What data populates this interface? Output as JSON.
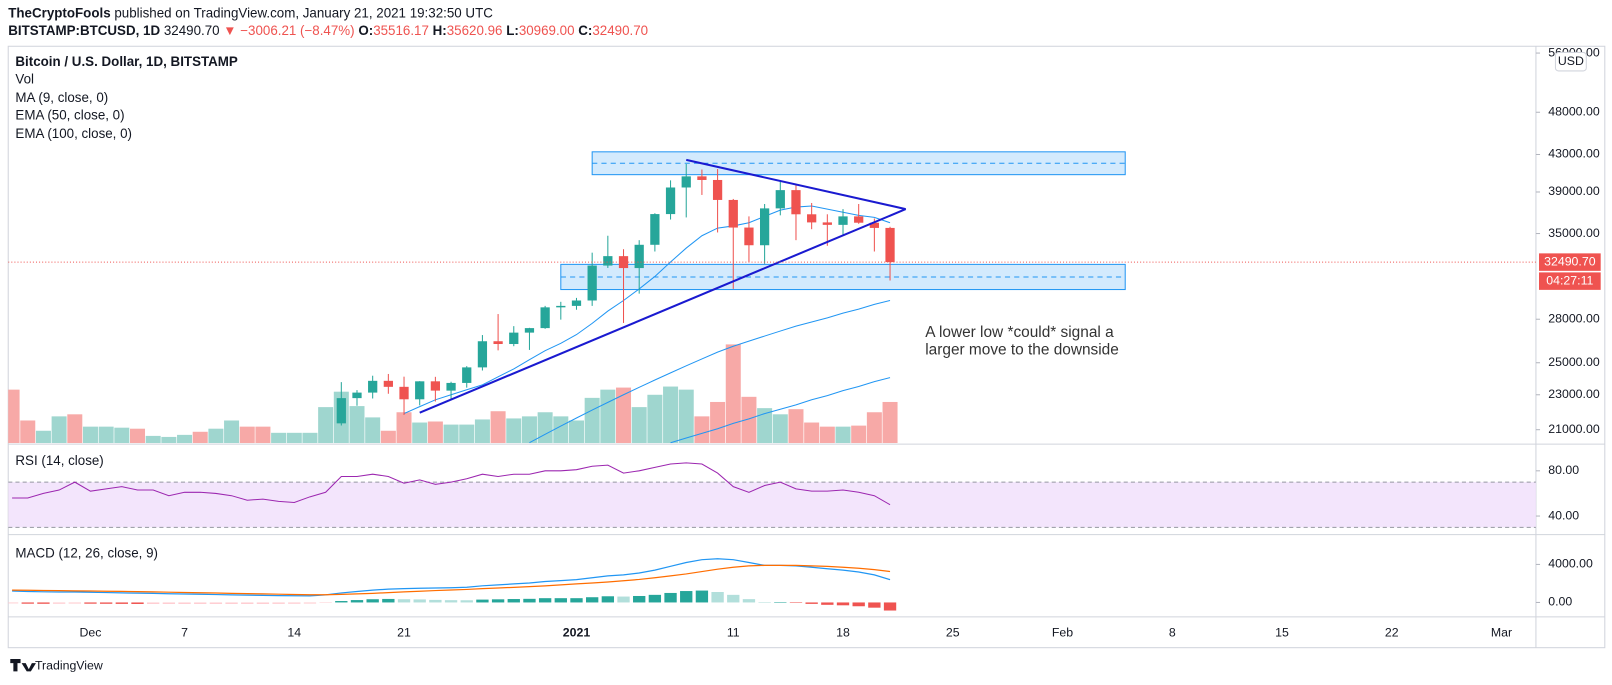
{
  "header": {
    "author": "TheCryptoFools",
    "published": "published on TradingView.com, January 21, 2021 19:32:50 UTC",
    "symbol": "BITSTAMP:BTCUSD, 1D",
    "last": "32490.70",
    "change": "▼ −3006.21 (−8.47%)",
    "ohlc": [
      {
        "label": "O:",
        "value": "35516.17"
      },
      {
        "label": "H:",
        "value": "35620.96"
      },
      {
        "label": "L:",
        "value": "30969.00"
      },
      {
        "label": "C:",
        "value": "32490.70"
      }
    ]
  },
  "footer": {
    "brand": "TradingView"
  },
  "chart_data": {
    "type": "candlestick",
    "title": "Bitcoin / U.S. Dollar, 1D, BITSTAMP",
    "y_unit": "USD",
    "x": [
      "2020-11-26",
      "2020-11-27",
      "2020-11-28",
      "2020-11-29",
      "2020-11-30",
      "2020-12-01",
      "2020-12-02",
      "2020-12-03",
      "2020-12-04",
      "2020-12-05",
      "2020-12-06",
      "2020-12-07",
      "2020-12-08",
      "2020-12-09",
      "2020-12-10",
      "2020-12-11",
      "2020-12-12",
      "2020-12-13",
      "2020-12-14",
      "2020-12-15",
      "2020-12-16",
      "2020-12-17",
      "2020-12-18",
      "2020-12-19",
      "2020-12-20",
      "2020-12-21",
      "2020-12-22",
      "2020-12-23",
      "2020-12-24",
      "2020-12-25",
      "2020-12-26",
      "2020-12-27",
      "2020-12-28",
      "2020-12-29",
      "2020-12-30",
      "2020-12-31",
      "2021-01-01",
      "2021-01-02",
      "2021-01-03",
      "2021-01-04",
      "2021-01-05",
      "2021-01-06",
      "2021-01-07",
      "2021-01-08",
      "2021-01-09",
      "2021-01-10",
      "2021-01-11",
      "2021-01-12",
      "2021-01-13",
      "2021-01-14",
      "2021-01-15",
      "2021-01-16",
      "2021-01-17",
      "2021-01-18",
      "2021-01-19",
      "2021-01-20",
      "2021-01-21"
    ],
    "xlim": [
      "2020-11-25",
      "2021-03-03"
    ],
    "xticks": [
      {
        "value": "2020-12-01",
        "label": "Dec"
      },
      {
        "value": "2020-12-07",
        "label": "7"
      },
      {
        "value": "2020-12-14",
        "label": "14"
      },
      {
        "value": "2020-12-21",
        "label": "21"
      },
      {
        "value": "2021-01-01",
        "label": "2021"
      },
      {
        "value": "2021-01-11",
        "label": "11"
      },
      {
        "value": "2021-01-18",
        "label": "18"
      },
      {
        "value": "2021-01-25",
        "label": "25"
      },
      {
        "value": "2021-02-01",
        "label": "Feb"
      },
      {
        "value": "2021-02-08",
        "label": "8"
      },
      {
        "value": "2021-02-15",
        "label": "15"
      },
      {
        "value": "2021-02-22",
        "label": "22"
      },
      {
        "value": "2021-03-01",
        "label": "Mar"
      }
    ],
    "ylim": [
      20280,
      57000
    ],
    "log_scale": true,
    "grid": false,
    "yticks": [
      {
        "value": 21000,
        "label": "21000.00"
      },
      {
        "value": 23000,
        "label": "23000.00"
      },
      {
        "value": 25000,
        "label": "25000.00"
      },
      {
        "value": 28000,
        "label": "28000.00"
      },
      {
        "value": 35000,
        "label": "35000.00"
      },
      {
        "value": 39000,
        "label": "39000.00"
      },
      {
        "value": 43000,
        "label": "43000.00"
      },
      {
        "value": 48000,
        "label": "48000.00"
      },
      {
        "value": 56000,
        "label": "56000.00"
      }
    ],
    "up_color": "#26a69a",
    "down_color": "#ef5350",
    "open": [
      null,
      null,
      null,
      null,
      null,
      null,
      null,
      null,
      null,
      null,
      null,
      null,
      null,
      null,
      null,
      null,
      null,
      null,
      null,
      null,
      null,
      21350,
      22800,
      23130,
      23850,
      23480,
      22730,
      23820,
      23250,
      23720,
      24700,
      26440,
      26250,
      27040,
      27360,
      28880,
      28990,
      29400,
      32200,
      33000,
      31990,
      33990,
      36820,
      39460,
      40620,
      40240,
      38200,
      35550,
      33950,
      37370,
      39190,
      36800,
      36030,
      35800,
      36600,
      36000,
      35516.17
    ],
    "high": [
      null,
      null,
      null,
      null,
      null,
      null,
      null,
      null,
      null,
      null,
      null,
      null,
      null,
      null,
      null,
      null,
      null,
      null,
      null,
      null,
      null,
      23770,
      23280,
      24170,
      24280,
      24110,
      23830,
      24100,
      23790,
      24780,
      26870,
      28380,
      27500,
      27380,
      28990,
      29300,
      29600,
      33300,
      34800,
      33600,
      34400,
      36900,
      40200,
      41950,
      41350,
      41400,
      38300,
      36600,
      37800,
      40100,
      39700,
      37900,
      36800,
      37300,
      37800,
      36400,
      35620.96
    ],
    "low": [
      null,
      null,
      null,
      null,
      null,
      null,
      null,
      null,
      null,
      null,
      null,
      null,
      null,
      null,
      null,
      null,
      null,
      null,
      null,
      null,
      null,
      21230,
      22350,
      22780,
      23060,
      21820,
      22370,
      22600,
      22720,
      23430,
      24500,
      25820,
      26100,
      25850,
      27310,
      27970,
      28700,
      28990,
      32000,
      27730,
      29930,
      33400,
      36300,
      36500,
      38700,
      35100,
      30300,
      32500,
      32350,
      36700,
      34400,
      35400,
      33900,
      34800,
      35900,
      33400,
      30969
    ],
    "close": [
      null,
      null,
      null,
      null,
      null,
      null,
      null,
      null,
      null,
      null,
      null,
      null,
      null,
      null,
      null,
      null,
      null,
      null,
      null,
      null,
      null,
      22800,
      23130,
      23850,
      23480,
      22730,
      23820,
      23250,
      23720,
      24700,
      26440,
      26250,
      27040,
      27360,
      28880,
      28990,
      29400,
      32200,
      33000,
      31990,
      33990,
      36820,
      39460,
      40620,
      40240,
      38200,
      35550,
      33950,
      37370,
      39190,
      36800,
      36030,
      35800,
      36600,
      36000,
      35516.17,
      32490.7
    ],
    "volume": {
      "name": "Vol",
      "values": [
        52,
        22,
        12,
        26,
        28,
        16,
        16,
        15,
        14,
        7,
        6,
        8,
        11,
        14,
        22,
        16,
        16,
        10,
        10,
        10,
        35,
        50,
        36,
        25,
        12,
        30,
        20,
        21,
        18,
        18,
        23,
        31,
        24,
        26,
        30,
        26,
        22,
        44,
        52,
        54,
        35,
        47,
        55,
        52,
        26,
        40,
        96,
        45,
        34,
        28,
        33,
        20,
        16,
        16,
        17,
        30,
        40
      ],
      "colors": [
        "#f7a9a7",
        "#f7a9a7",
        "#9fd6cf",
        "#9fd6cf",
        "#f7a9a7",
        "#9fd6cf",
        "#9fd6cf",
        "#9fd6cf",
        "#f7a9a7",
        "#9fd6cf",
        "#9fd6cf",
        "#9fd6cf",
        "#f7a9a7",
        "#9fd6cf",
        "#9fd6cf",
        "#f7a9a7",
        "#f7a9a7",
        "#9fd6cf",
        "#9fd6cf",
        "#9fd6cf",
        "#9fd6cf",
        "#9fd6cf",
        "#9fd6cf",
        "#9fd6cf",
        "#f7a9a7",
        "#f7a9a7",
        "#9fd6cf",
        "#f7a9a7",
        "#9fd6cf",
        "#9fd6cf",
        "#9fd6cf",
        "#f7a9a7",
        "#9fd6cf",
        "#9fd6cf",
        "#9fd6cf",
        "#9fd6cf",
        "#9fd6cf",
        "#9fd6cf",
        "#9fd6cf",
        "#f7a9a7",
        "#9fd6cf",
        "#9fd6cf",
        "#9fd6cf",
        "#9fd6cf",
        "#f7a9a7",
        "#f7a9a7",
        "#f7a9a7",
        "#f7a9a7",
        "#9fd6cf",
        "#9fd6cf",
        "#f7a9a7",
        "#f7a9a7",
        "#f7a9a7",
        "#9fd6cf",
        "#f7a9a7",
        "#f7a9a7",
        "#f7a9a7"
      ]
    },
    "series": [
      {
        "name": "MA (9, close, 0)",
        "color": "#2196f3",
        "values": [
          null,
          null,
          null,
          null,
          null,
          null,
          null,
          null,
          null,
          null,
          null,
          null,
          null,
          null,
          null,
          null,
          null,
          null,
          null,
          null,
          null,
          null,
          null,
          null,
          null,
          21900,
          22300,
          22700,
          23000,
          23300,
          23600,
          24100,
          24600,
          25200,
          25800,
          26300,
          26900,
          27700,
          28600,
          29400,
          30300,
          31300,
          32500,
          33700,
          34800,
          35500,
          35700,
          36000,
          36600,
          37200,
          37500,
          37600,
          37300,
          37000,
          36700,
          36500,
          36000
        ]
      },
      {
        "name": "EMA (50, close, 0)",
        "color": "#2196f3",
        "values": [
          null,
          null,
          null,
          null,
          null,
          null,
          null,
          null,
          null,
          null,
          null,
          null,
          null,
          null,
          null,
          null,
          null,
          null,
          null,
          null,
          null,
          null,
          null,
          null,
          null,
          null,
          null,
          null,
          null,
          null,
          null,
          null,
          null,
          20300,
          20750,
          21200,
          21650,
          22100,
          22550,
          23000,
          23450,
          23900,
          24350,
          24800,
          25250,
          25700,
          26100,
          26450,
          26800,
          27150,
          27500,
          27800,
          28100,
          28450,
          28750,
          29100,
          29400
        ]
      },
      {
        "name": "EMA (100, close, 0)",
        "color": "#2196f3",
        "values": [
          null,
          null,
          null,
          null,
          null,
          null,
          null,
          null,
          null,
          null,
          null,
          null,
          null,
          null,
          null,
          null,
          null,
          null,
          null,
          null,
          null,
          null,
          null,
          null,
          null,
          null,
          null,
          null,
          null,
          null,
          null,
          null,
          null,
          null,
          null,
          null,
          null,
          null,
          null,
          null,
          null,
          null,
          20300,
          20550,
          20800,
          21050,
          21350,
          21600,
          21900,
          22150,
          22400,
          22700,
          22950,
          23250,
          23500,
          23800,
          24050
        ]
      }
    ],
    "price_line": {
      "value": 32490.7,
      "label": "32490.70",
      "countdown": "04:27:11",
      "color": "#ef5350"
    },
    "zones": [
      {
        "start": "2021-01-02",
        "end": "2021-02-05",
        "top": 43300,
        "bottom": 40800,
        "color": "#2196f3"
      },
      {
        "start": "2020-12-31",
        "end": "2021-02-05",
        "top": 32300,
        "bottom": 30250,
        "color": "#2196f3"
      }
    ],
    "trendlines": [
      {
        "x": [
          "2021-01-08",
          "2021-01-22"
        ],
        "y": [
          42400,
          37300
        ],
        "color": "#1a1ad0"
      },
      {
        "x": [
          "2020-12-22",
          "2021-01-22"
        ],
        "y": [
          21950,
          37300
        ],
        "color": "#1a1ad0"
      }
    ],
    "annotation": [
      "A lower low *could* signal a",
      "larger move to the downside"
    ],
    "rsi": {
      "name": "RSI (14, close)",
      "color": "#9c27b0",
      "band_color": "#f3e5fc",
      "band": [
        30,
        70
      ],
      "ylim": [
        24.5,
        102.7
      ],
      "yticks": [
        {
          "value": 80,
          "label": "80.00"
        },
        {
          "value": 40,
          "label": "40.00"
        }
      ],
      "values": [
        56,
        56,
        60,
        63,
        70,
        62,
        64,
        66,
        63,
        63,
        58,
        61,
        61,
        60,
        58,
        54,
        55,
        53,
        52,
        57,
        61,
        75,
        75,
        77,
        75,
        69,
        72,
        68,
        70,
        73,
        77,
        75,
        77,
        77,
        80,
        80,
        81,
        84,
        85,
        78,
        80,
        83,
        86,
        87,
        86,
        78,
        66,
        61,
        67,
        70,
        64,
        62,
        62,
        63,
        61,
        58,
        50
      ]
    },
    "macd": {
      "name": "MACD (12, 26, close, 9)",
      "ylim": [
        -1405,
        7030
      ],
      "yticks": [
        {
          "value": 4000,
          "label": "4000.00"
        },
        {
          "value": 0,
          "label": "0.00"
        }
      ],
      "series": [
        {
          "color": "#2196f3",
          "values": [
            1200,
            1150,
            1120,
            1100,
            1100,
            1070,
            1040,
            1010,
            980,
            950,
            920,
            890,
            860,
            830,
            800,
            770,
            740,
            720,
            700,
            690,
            800,
            1000,
            1150,
            1300,
            1400,
            1450,
            1500,
            1520,
            1550,
            1600,
            1750,
            1850,
            1950,
            2050,
            2200,
            2300,
            2400,
            2600,
            2800,
            2900,
            3100,
            3400,
            3800,
            4200,
            4500,
            4600,
            4500,
            4200,
            3900,
            3900,
            3850,
            3700,
            3550,
            3400,
            3200,
            2900,
            2400
          ]
        },
        {
          "color": "#ff6d00",
          "values": [
            1300,
            1280,
            1260,
            1240,
            1220,
            1200,
            1180,
            1160,
            1140,
            1110,
            1080,
            1050,
            1020,
            990,
            960,
            930,
            900,
            870,
            840,
            810,
            810,
            850,
            900,
            960,
            1030,
            1110,
            1180,
            1250,
            1310,
            1370,
            1450,
            1520,
            1590,
            1670,
            1750,
            1850,
            1950,
            2050,
            2150,
            2280,
            2420,
            2600,
            2800,
            3000,
            3250,
            3500,
            3700,
            3850,
            3900,
            3900,
            3900,
            3850,
            3800,
            3700,
            3600,
            3450,
            3250
          ]
        }
      ],
      "histogram": {
        "colors": {
          "above_rising": "#26a69a",
          "above_falling": "#b2dfdb",
          "below_rising": "#ffcdd2",
          "below_falling": "#ef5350"
        },
        "values": [
          -100,
          -130,
          -140,
          -140,
          -120,
          -130,
          -140,
          -150,
          -160,
          -160,
          -160,
          -160,
          -160,
          -160,
          -160,
          -160,
          -160,
          -150,
          -140,
          -120,
          -10,
          150,
          250,
          340,
          370,
          340,
          320,
          270,
          240,
          230,
          300,
          330,
          360,
          380,
          450,
          450,
          450,
          550,
          650,
          620,
          680,
          800,
          1000,
          1200,
          1250,
          1100,
          800,
          350,
          0,
          0,
          -50,
          -150,
          -250,
          -300,
          -400,
          -550,
          -850
        ]
      }
    }
  }
}
